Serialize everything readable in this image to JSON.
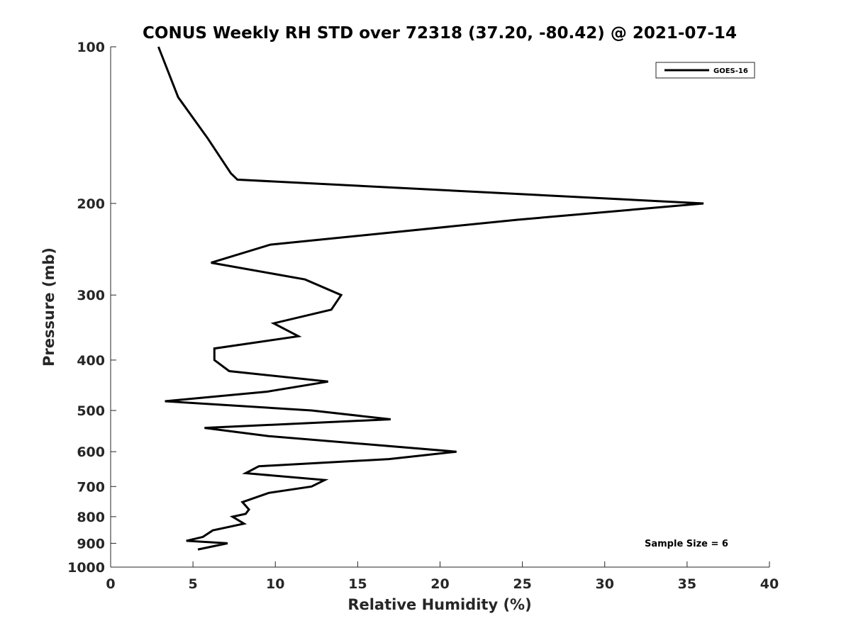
{
  "chart_data": {
    "type": "line",
    "title": "CONUS Weekly RH STD over 72318 (37.20, -80.42) @ 2021-07-14",
    "xlabel": "Relative Humidity (%)",
    "ylabel": "Pressure (mb)",
    "xlim": [
      0,
      40
    ],
    "ylim": [
      100,
      1000
    ],
    "y_scale": "log",
    "y_reversed": true,
    "x_ticks": [
      0,
      5,
      10,
      15,
      20,
      25,
      30,
      35,
      40
    ],
    "y_ticks": [
      100,
      200,
      300,
      400,
      500,
      600,
      700,
      800,
      900,
      1000
    ],
    "grid": false,
    "legend_position": "top-right",
    "annotation": "Sample Size = 6",
    "series": [
      {
        "name": "GOES-16",
        "color": "#000000",
        "points": [
          [
            2.9,
            100
          ],
          [
            4.1,
            125
          ],
          [
            5.9,
            150
          ],
          [
            7.3,
            175
          ],
          [
            7.7,
            180
          ],
          [
            36.0,
            200
          ],
          [
            24.7,
            215
          ],
          [
            9.7,
            240
          ],
          [
            6.1,
            260
          ],
          [
            11.8,
            280
          ],
          [
            14.0,
            300
          ],
          [
            13.4,
            320
          ],
          [
            9.9,
            340
          ],
          [
            11.4,
            360
          ],
          [
            6.3,
            380
          ],
          [
            6.3,
            400
          ],
          [
            7.2,
            420
          ],
          [
            13.2,
            440
          ],
          [
            9.5,
            460
          ],
          [
            3.3,
            480
          ],
          [
            12.2,
            500
          ],
          [
            17.0,
            520
          ],
          [
            5.7,
            540
          ],
          [
            9.6,
            560
          ],
          [
            21.0,
            600
          ],
          [
            16.9,
            620
          ],
          [
            9.0,
            640
          ],
          [
            8.2,
            660
          ],
          [
            13.0,
            680
          ],
          [
            12.2,
            700
          ],
          [
            9.6,
            720
          ],
          [
            8.0,
            750
          ],
          [
            8.4,
            775
          ],
          [
            8.2,
            790
          ],
          [
            7.4,
            800
          ],
          [
            8.1,
            825
          ],
          [
            6.2,
            850
          ],
          [
            5.6,
            875
          ],
          [
            4.6,
            890
          ],
          [
            7.1,
            900
          ],
          [
            5.3,
            925
          ]
        ]
      }
    ]
  }
}
